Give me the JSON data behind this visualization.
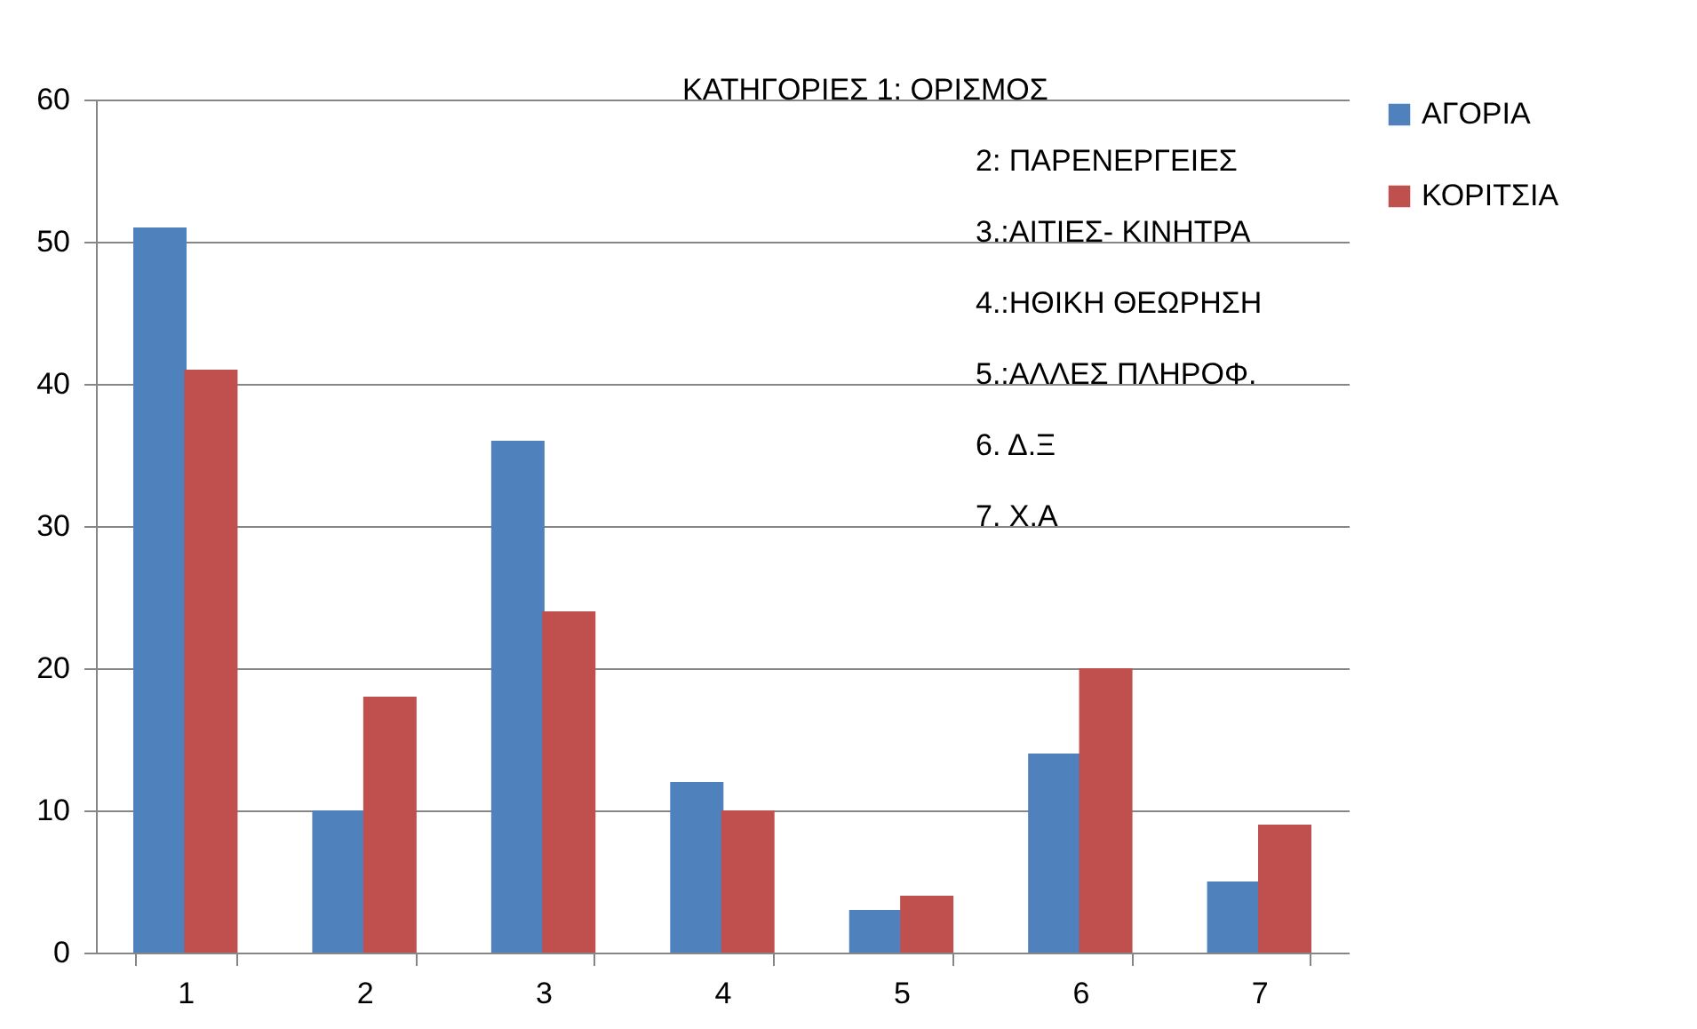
{
  "chart_data": {
    "type": "bar",
    "categories": [
      "1",
      "2",
      "3",
      "4",
      "5",
      "6",
      "7"
    ],
    "series": [
      {
        "name": "ΑΓΟΡΙΑ",
        "color": "#4f81bd",
        "values": [
          51,
          10,
          36,
          12,
          3,
          14,
          5
        ]
      },
      {
        "name": "ΚΟΡΙΤΣΙΑ",
        "color": "#c0504d",
        "values": [
          41,
          18,
          24,
          10,
          4,
          20,
          9
        ]
      }
    ],
    "ylim": [
      0,
      60
    ],
    "yticks": [
      0,
      10,
      20,
      30,
      40,
      50,
      60
    ],
    "grid": "y",
    "legend": "right",
    "annotations": [
      "ΚΑΤΗΓΟΡΙΕΣ  1: ΟΡΙΣΜΟΣ",
      "2: ΠΑΡΕΝΕΡΓΕΙΕΣ",
      "3.:ΑΙΤΙΕΣ- ΚΙΝΗΤΡΑ",
      "4.:ΗΘΙΚΗ ΘΕΩΡΗΣΗ",
      "5.:ΑΛΛΕΣ ΠΛΗΡΟΦ.",
      "6. Δ.Ξ",
      "7. Χ.Α"
    ]
  }
}
